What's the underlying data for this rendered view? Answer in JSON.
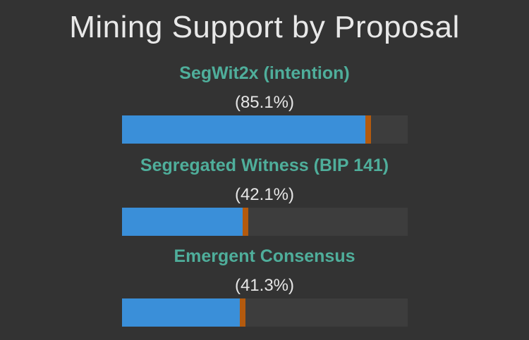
{
  "chart_data": {
    "type": "bar",
    "title": "Mining Support by Proposal",
    "categories": [
      "SegWit2x (intention)",
      "Segregated Witness (BIP 141)",
      "Emergent Consensus"
    ],
    "labels": [
      "(85.1%)",
      "(42.1%)",
      "(41.3%)"
    ],
    "values": [
      85.1,
      42.1,
      41.3
    ],
    "ylim": [
      0,
      100
    ],
    "orientation": "horizontal",
    "xlabel": "",
    "ylabel": ""
  },
  "colors": {
    "background": "#333333",
    "title": "#e8e8e8",
    "label": "#4fae9b",
    "percent": "#e6e6e6",
    "track": "#3d3d3d",
    "fill": "#3a8fd9",
    "marker": "#b35a0e"
  }
}
